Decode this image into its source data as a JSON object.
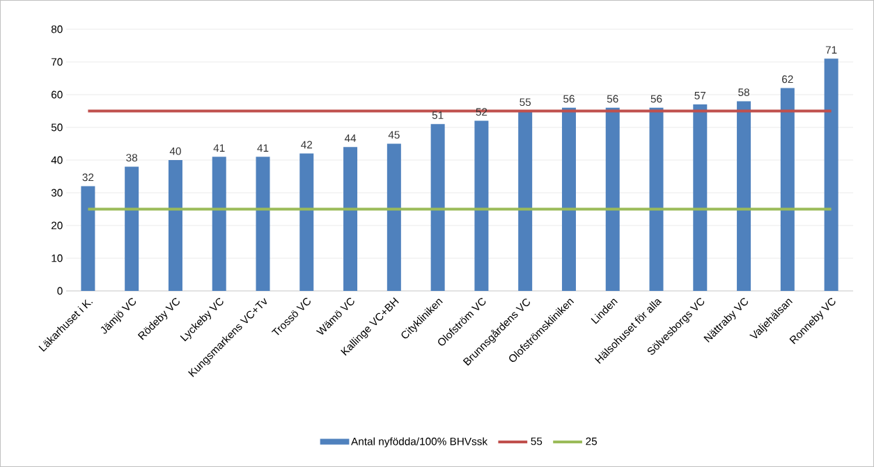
{
  "chart_data": {
    "type": "bar",
    "categories": [
      "Läkarhuset i K.",
      "Jämjö VC",
      "Rödeby VC",
      "Lyckeby VC",
      "Kungsmarkens VC+Tv",
      "Trossö VC",
      "Wämö VC",
      "Kallinge VC+BH",
      "Citykliniken",
      "Olofström VC",
      "Brunnsgårdens VC",
      "Olofströmskliniken",
      "Linden",
      "Hälsohuset för alla",
      "Sölvesborgs VC",
      "Nättraby VC",
      "Valjehälsan",
      "Ronneby VC"
    ],
    "series": [
      {
        "name": "Antal nyfödda/100% BHVssk",
        "color": "#4f81bd",
        "data_labels": true,
        "values": [
          32,
          38,
          40,
          41,
          41,
          42,
          44,
          45,
          51,
          52,
          55,
          56,
          56,
          56,
          57,
          58,
          62,
          71
        ]
      },
      {
        "name": "55",
        "type": "line",
        "color": "#c0504d",
        "values": [
          55,
          55,
          55,
          55,
          55,
          55,
          55,
          55,
          55,
          55,
          55,
          55,
          55,
          55,
          55,
          55,
          55,
          55
        ]
      },
      {
        "name": "25",
        "type": "line",
        "color": "#9bbb59",
        "values": [
          25,
          25,
          25,
          25,
          25,
          25,
          25,
          25,
          25,
          25,
          25,
          25,
          25,
          25,
          25,
          25,
          25,
          25
        ]
      }
    ],
    "ylim": [
      0,
      80
    ],
    "yticks": [
      0,
      10,
      20,
      30,
      40,
      50,
      60,
      70,
      80
    ],
    "grid": "y",
    "legend": "bottom",
    "marker": "none"
  }
}
